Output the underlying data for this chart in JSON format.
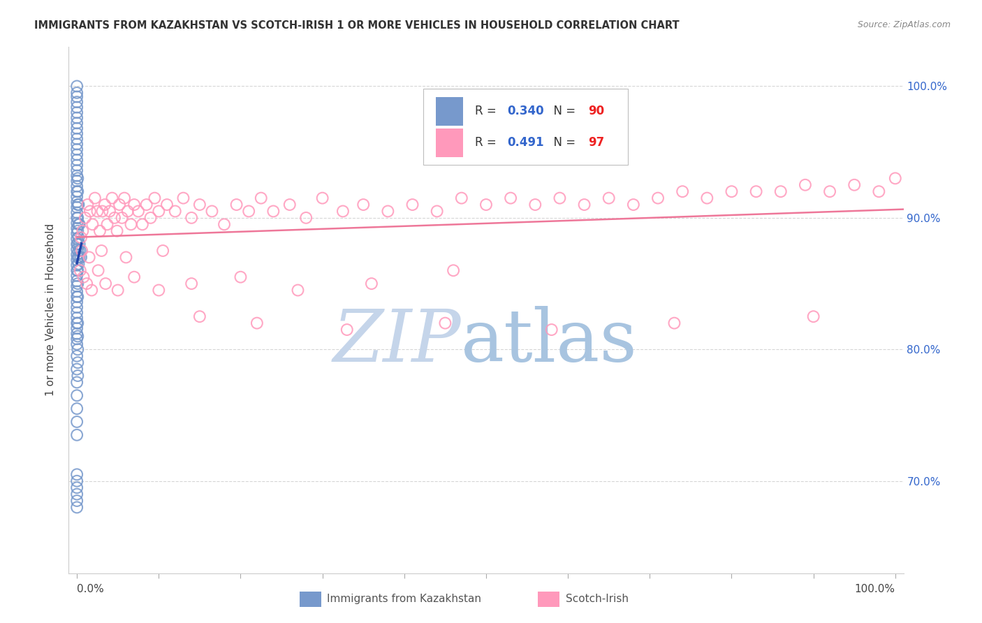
{
  "title": "IMMIGRANTS FROM KAZAKHSTAN VS SCOTCH-IRISH 1 OR MORE VEHICLES IN HOUSEHOLD CORRELATION CHART",
  "source": "Source: ZipAtlas.com",
  "ylabel": "1 or more Vehicles in Household",
  "legend_blue_r": "0.340",
  "legend_blue_n": "90",
  "legend_pink_r": "0.491",
  "legend_pink_n": "97",
  "blue_color": "#7799CC",
  "pink_color": "#FF99BB",
  "blue_line_color": "#2244AA",
  "pink_line_color": "#EE7799",
  "r_color": "#3366CC",
  "n_color": "#EE2222",
  "watermark_zip_color": "#C5D5EA",
  "watermark_atlas_color": "#A8C4E0",
  "ylim_min": 63,
  "ylim_max": 103,
  "xlim_min": -1,
  "xlim_max": 101,
  "yticks": [
    70,
    80,
    90,
    100
  ],
  "xticks": [
    0,
    10,
    20,
    30,
    40,
    50,
    60,
    70,
    80,
    90,
    100
  ],
  "kazakhstan_x": [
    0.0,
    0.0,
    0.0,
    0.0,
    0.0,
    0.0,
    0.0,
    0.0,
    0.0,
    0.0,
    0.0,
    0.0,
    0.0,
    0.0,
    0.0,
    0.0,
    0.0,
    0.0,
    0.0,
    0.0,
    0.0,
    0.0,
    0.0,
    0.0,
    0.0,
    0.0,
    0.0,
    0.0,
    0.0,
    0.0,
    0.0,
    0.0,
    0.0,
    0.0,
    0.0,
    0.0,
    0.0,
    0.0,
    0.0,
    0.0,
    0.0,
    0.0,
    0.0,
    0.0,
    0.0,
    0.0,
    0.0,
    0.0,
    0.0,
    0.0,
    0.1,
    0.1,
    0.1,
    0.1,
    0.1,
    0.1,
    0.1,
    0.1,
    0.1,
    0.1,
    0.2,
    0.2,
    0.2,
    0.2,
    0.2,
    0.3,
    0.3,
    0.3,
    0.4,
    0.5,
    0.0,
    0.0,
    0.0,
    0.0,
    0.0,
    0.0,
    0.0,
    0.0,
    0.0,
    0.0,
    0.0,
    0.0,
    0.0,
    0.1,
    0.1,
    0.1,
    0.1,
    0.1
  ],
  "kazakhstan_y": [
    100.0,
    99.5,
    99.2,
    98.8,
    98.4,
    98.0,
    97.6,
    97.2,
    96.8,
    96.4,
    96.0,
    95.6,
    95.2,
    94.8,
    94.4,
    94.0,
    93.6,
    93.2,
    92.8,
    92.4,
    92.0,
    91.6,
    91.2,
    90.8,
    90.4,
    90.0,
    89.6,
    89.2,
    88.8,
    88.4,
    88.0,
    87.6,
    87.2,
    86.8,
    86.4,
    86.0,
    85.6,
    85.2,
    84.8,
    84.4,
    84.0,
    83.6,
    83.2,
    82.8,
    82.4,
    82.0,
    81.6,
    81.2,
    80.8,
    80.4,
    93.0,
    92.0,
    91.0,
    90.0,
    89.0,
    88.0,
    87.0,
    86.0,
    85.0,
    84.0,
    91.0,
    89.5,
    88.5,
    87.5,
    86.5,
    89.5,
    88.0,
    87.0,
    87.5,
    87.0,
    79.5,
    78.5,
    77.5,
    76.5,
    75.5,
    74.5,
    73.5,
    70.5,
    70.0,
    69.5,
    69.0,
    68.5,
    68.0,
    82.0,
    81.0,
    80.0,
    79.0,
    78.0
  ],
  "scotchirish_x": [
    0.5,
    0.7,
    1.0,
    1.3,
    1.6,
    1.9,
    2.2,
    2.5,
    2.8,
    3.1,
    3.4,
    3.7,
    4.0,
    4.3,
    4.6,
    4.9,
    5.2,
    5.5,
    5.8,
    6.2,
    6.6,
    7.0,
    7.5,
    8.0,
    8.5,
    9.0,
    9.5,
    10.0,
    11.0,
    12.0,
    13.0,
    14.0,
    15.0,
    16.5,
    18.0,
    19.5,
    21.0,
    22.5,
    24.0,
    26.0,
    28.0,
    30.0,
    32.5,
    35.0,
    38.0,
    41.0,
    44.0,
    47.0,
    50.0,
    53.0,
    56.0,
    59.0,
    62.0,
    65.0,
    68.0,
    71.0,
    74.0,
    77.0,
    80.0,
    83.0,
    86.0,
    89.0,
    92.0,
    95.0,
    98.0,
    100.0,
    0.4,
    0.8,
    1.2,
    1.8,
    2.6,
    3.5,
    5.0,
    7.0,
    10.0,
    14.0,
    20.0,
    27.0,
    36.0,
    46.0,
    0.6,
    1.5,
    3.0,
    6.0,
    10.5,
    15.0,
    22.0,
    33.0,
    45.0,
    58.0,
    73.0,
    90.0
  ],
  "scotchirish_y": [
    88.5,
    89.0,
    90.0,
    91.0,
    90.5,
    89.5,
    91.5,
    90.5,
    89.0,
    90.5,
    91.0,
    89.5,
    90.5,
    91.5,
    90.0,
    89.0,
    91.0,
    90.0,
    91.5,
    90.5,
    89.5,
    91.0,
    90.5,
    89.5,
    91.0,
    90.0,
    91.5,
    90.5,
    91.0,
    90.5,
    91.5,
    90.0,
    91.0,
    90.5,
    89.5,
    91.0,
    90.5,
    91.5,
    90.5,
    91.0,
    90.0,
    91.5,
    90.5,
    91.0,
    90.5,
    91.0,
    90.5,
    91.5,
    91.0,
    91.5,
    91.0,
    91.5,
    91.0,
    91.5,
    91.0,
    91.5,
    92.0,
    91.5,
    92.0,
    92.0,
    92.0,
    92.5,
    92.0,
    92.5,
    92.0,
    93.0,
    86.0,
    85.5,
    85.0,
    84.5,
    86.0,
    85.0,
    84.5,
    85.5,
    84.5,
    85.0,
    85.5,
    84.5,
    85.0,
    86.0,
    87.5,
    87.0,
    87.5,
    87.0,
    87.5,
    82.5,
    82.0,
    81.5,
    82.0,
    81.5,
    82.0,
    82.5
  ]
}
